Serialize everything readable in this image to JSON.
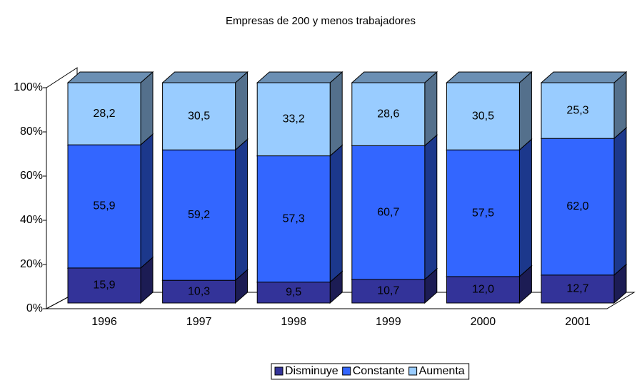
{
  "chart_data": {
    "type": "stacked_bar",
    "title": "Empresas de 200 y menos trabajadores",
    "categories": [
      "1996",
      "1997",
      "1998",
      "1999",
      "2000",
      "2001"
    ],
    "series": [
      {
        "name": "Disminuye",
        "color": "#333399",
        "values": [
          15.9,
          10.3,
          9.5,
          10.7,
          12.0,
          12.7
        ],
        "value_labels": [
          "15,9",
          "10,3",
          "9,5",
          "10,7",
          "12,0",
          "12,7"
        ]
      },
      {
        "name": "Constante",
        "color": "#3366ff",
        "values": [
          55.9,
          59.2,
          57.3,
          60.7,
          57.5,
          62.0
        ],
        "value_labels": [
          "55,9",
          "59,2",
          "57,3",
          "60,7",
          "57,5",
          "62,0"
        ]
      },
      {
        "name": "Aumenta",
        "color": "#99ccff",
        "values": [
          28.2,
          30.5,
          33.2,
          28.6,
          30.5,
          25.3
        ],
        "value_labels": [
          "28,2",
          "30,5",
          "33,2",
          "28,6",
          "30,5",
          "25,3"
        ]
      }
    ],
    "ylim": [
      0,
      100
    ],
    "yticks": [
      {
        "value": 0,
        "label": "0%"
      },
      {
        "value": 20,
        "label": "20%"
      },
      {
        "value": 40,
        "label": "40%"
      },
      {
        "value": 60,
        "label": "60%"
      },
      {
        "value": 80,
        "label": "80%"
      },
      {
        "value": 100,
        "label": "100%"
      }
    ],
    "legend": "bottom"
  }
}
